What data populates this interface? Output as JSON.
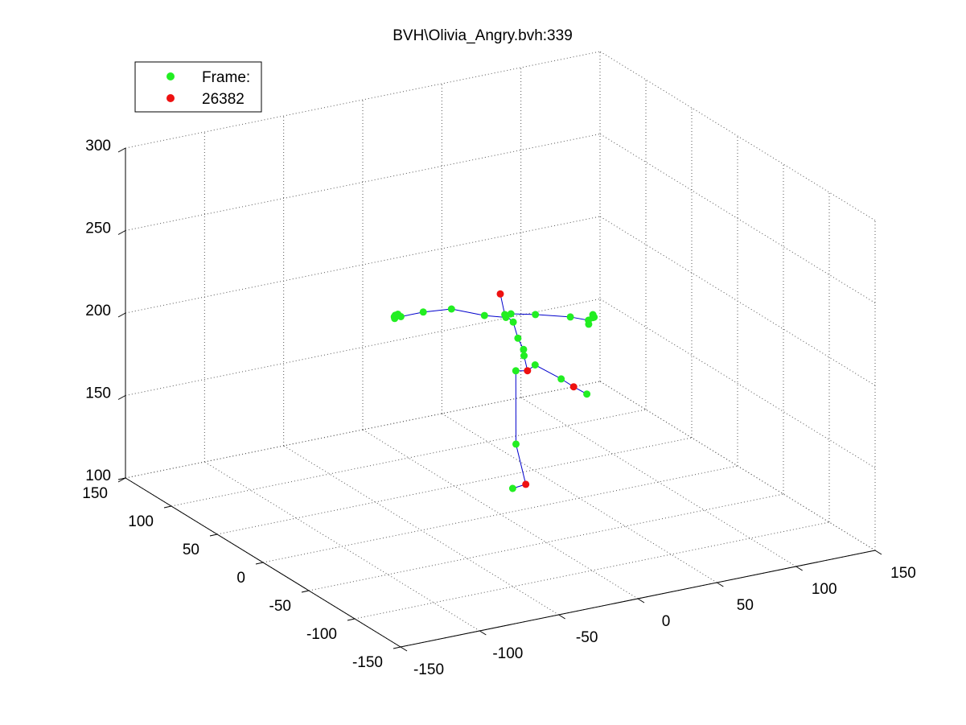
{
  "chart_data": {
    "type": "scatter",
    "subtype": "3d-skeleton",
    "title": "BVH\\Olivia_Angry.bvh:339",
    "xlabel": "",
    "ylabel": "",
    "zlabel": "",
    "xlim": [
      -150,
      150
    ],
    "ylim": [
      -150,
      150
    ],
    "zlim": [
      100,
      300
    ],
    "x_ticks": [
      "-150",
      "-100",
      "-50",
      "0",
      "50",
      "100",
      "150"
    ],
    "y_ticks": [
      "150",
      "100",
      "50",
      "0",
      "-50",
      "-100",
      "-150"
    ],
    "z_ticks": [
      "100",
      "150",
      "200",
      "250",
      "300"
    ],
    "grid": true,
    "legend_position": "top-left",
    "legend": [
      {
        "label": "Frame:",
        "color": "#00ff00"
      },
      {
        "label": "26382",
        "color": "#ff0000"
      }
    ],
    "colors": {
      "joint": "#22ee22",
      "highlight": "#ee1111",
      "bone": "#0000cc"
    },
    "series": [
      {
        "name": "Frame:",
        "color": "#22ee22",
        "points": [
          [
            -55.8,
            18.6,
            224.7
          ],
          [
            -56.0,
            19.0,
            224.1
          ],
          [
            -56.2,
            18.2,
            223.4
          ],
          [
            -55.7,
            18.4,
            225.2
          ],
          [
            -54.2,
            18.2,
            225.6
          ],
          [
            -52.9,
            17.2,
            224.2
          ],
          [
            -41.4,
            12.6,
            226.3
          ],
          [
            -26.9,
            6.8,
            227.3
          ],
          [
            -10.0,
            0.0,
            222.4
          ],
          [
            1.0,
            -4.4,
            220.6
          ],
          [
            0.4,
            -4.2,
            222.4
          ],
          [
            3.6,
            -5.4,
            222.6
          ],
          [
            4.8,
            -5.8,
            217.5
          ],
          [
            7.2,
            -6.8,
            207.6
          ],
          [
            10.1,
            -7.9,
            200.6
          ],
          [
            10.3,
            -8.1,
            196.8
          ],
          [
            6.1,
            -6.4,
            187.9
          ],
          [
            16.0,
            -10.4,
            190.9
          ],
          [
            6.3,
            -6.2,
            143.4
          ],
          [
            5.0,
            -4.9,
            116.3
          ],
          [
            26.9,
            -20.0,
            183.6
          ],
          [
            41.5,
            -22.8,
            172.5
          ],
          [
            16.2,
            -10.4,
            221.4
          ],
          [
            34.1,
            -17.6,
            218.9
          ],
          [
            43.3,
            -21.4,
            216.4
          ],
          [
            45.6,
            -22.3,
            219.7
          ],
          [
            46.2,
            -22.6,
            218.1
          ],
          [
            45.5,
            -22.3,
            217.9
          ],
          [
            43.5,
            -21.4,
            214.0
          ]
        ]
      },
      {
        "name": "26382",
        "color": "#ee1111",
        "points": [
          [
            0.0,
            0.0,
            233.5
          ],
          [
            12.1,
            -8.8,
            187.6
          ],
          [
            34.1,
            -21.2,
            177.8
          ],
          [
            10.2,
            -10.2,
            119.6
          ]
        ]
      }
    ],
    "bones": [
      [
        [
          0.0,
          0.0,
          233.5
        ],
        [
          0.4,
          -4.2,
          222.4
        ]
      ],
      [
        [
          0.4,
          -4.2,
          222.4
        ],
        [
          4.8,
          -5.8,
          217.5
        ]
      ],
      [
        [
          4.8,
          -5.8,
          217.5
        ],
        [
          7.2,
          -6.8,
          207.6
        ]
      ],
      [
        [
          7.2,
          -6.8,
          207.6
        ],
        [
          10.1,
          -7.9,
          200.6
        ]
      ],
      [
        [
          10.1,
          -7.9,
          200.6
        ],
        [
          10.3,
          -8.1,
          196.8
        ]
      ],
      [
        [
          10.3,
          -8.1,
          196.8
        ],
        [
          12.1,
          -8.8,
          187.6
        ]
      ],
      [
        [
          12.1,
          -8.8,
          187.6
        ],
        [
          6.1,
          -6.4,
          187.9
        ]
      ],
      [
        [
          6.1,
          -6.4,
          187.9
        ],
        [
          6.3,
          -6.2,
          143.4
        ]
      ],
      [
        [
          6.3,
          -6.2,
          143.4
        ],
        [
          10.2,
          -10.2,
          119.6
        ]
      ],
      [
        [
          10.2,
          -10.2,
          119.6
        ],
        [
          5.0,
          -4.9,
          116.3
        ]
      ],
      [
        [
          12.1,
          -8.8,
          187.6
        ],
        [
          16.0,
          -10.4,
          190.9
        ]
      ],
      [
        [
          16.0,
          -10.4,
          190.9
        ],
        [
          26.9,
          -20.0,
          183.6
        ]
      ],
      [
        [
          26.9,
          -20.0,
          183.6
        ],
        [
          34.1,
          -21.2,
          177.8
        ]
      ],
      [
        [
          34.1,
          -21.2,
          177.8
        ],
        [
          41.5,
          -22.8,
          172.5
        ]
      ],
      [
        [
          1.0,
          -4.4,
          220.6
        ],
        [
          -10.0,
          0.0,
          222.4
        ]
      ],
      [
        [
          -10.0,
          0.0,
          222.4
        ],
        [
          -26.9,
          6.8,
          227.3
        ]
      ],
      [
        [
          -26.9,
          6.8,
          227.3
        ],
        [
          -41.4,
          12.6,
          226.3
        ]
      ],
      [
        [
          -41.4,
          12.6,
          226.3
        ],
        [
          -52.9,
          17.2,
          224.2
        ]
      ],
      [
        [
          -52.9,
          17.2,
          224.2
        ],
        [
          -55.8,
          18.6,
          224.7
        ]
      ],
      [
        [
          3.6,
          -5.4,
          222.6
        ],
        [
          16.2,
          -10.4,
          221.4
        ]
      ],
      [
        [
          16.2,
          -10.4,
          221.4
        ],
        [
          34.1,
          -17.6,
          218.9
        ]
      ],
      [
        [
          34.1,
          -17.6,
          218.9
        ],
        [
          43.3,
          -21.4,
          216.4
        ]
      ],
      [
        [
          43.3,
          -21.4,
          216.4
        ],
        [
          45.6,
          -22.3,
          219.7
        ]
      ]
    ]
  }
}
